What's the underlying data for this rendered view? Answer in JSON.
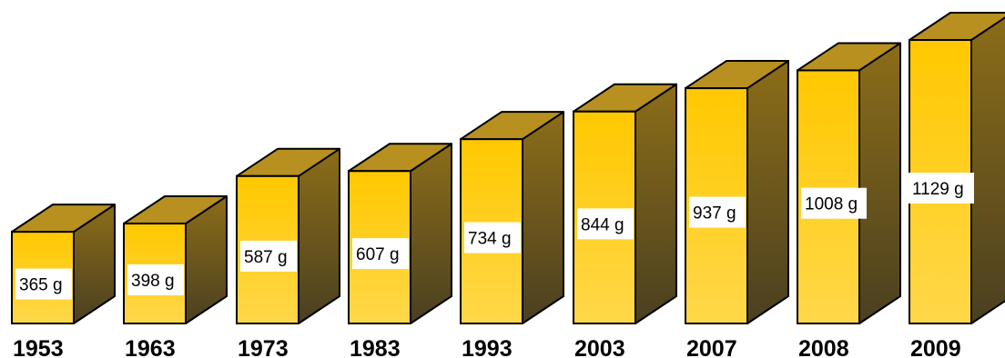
{
  "chart_data": {
    "type": "bar",
    "categories": [
      "1953",
      "1963",
      "1973",
      "1983",
      "1993",
      "2003",
      "2007",
      "2008",
      "2009"
    ],
    "values": [
      365,
      398,
      587,
      607,
      734,
      844,
      937,
      1008,
      1129
    ],
    "value_labels": [
      "365 g",
      "398 g",
      "587 g",
      "607 g",
      "734 g",
      "844 g",
      "937 g",
      "1008 g",
      "1129 g"
    ],
    "unit": "g",
    "title": "",
    "xlabel": "",
    "ylabel": "",
    "ylim": [
      0,
      1129
    ],
    "grid": false,
    "colors": {
      "front_top": "#ffc800",
      "front_bottom": "#ffd84a",
      "top_face": "#b79020",
      "side_top": "#8c6d18",
      "side_bottom": "#4a3f20",
      "outline": "#000000"
    }
  }
}
